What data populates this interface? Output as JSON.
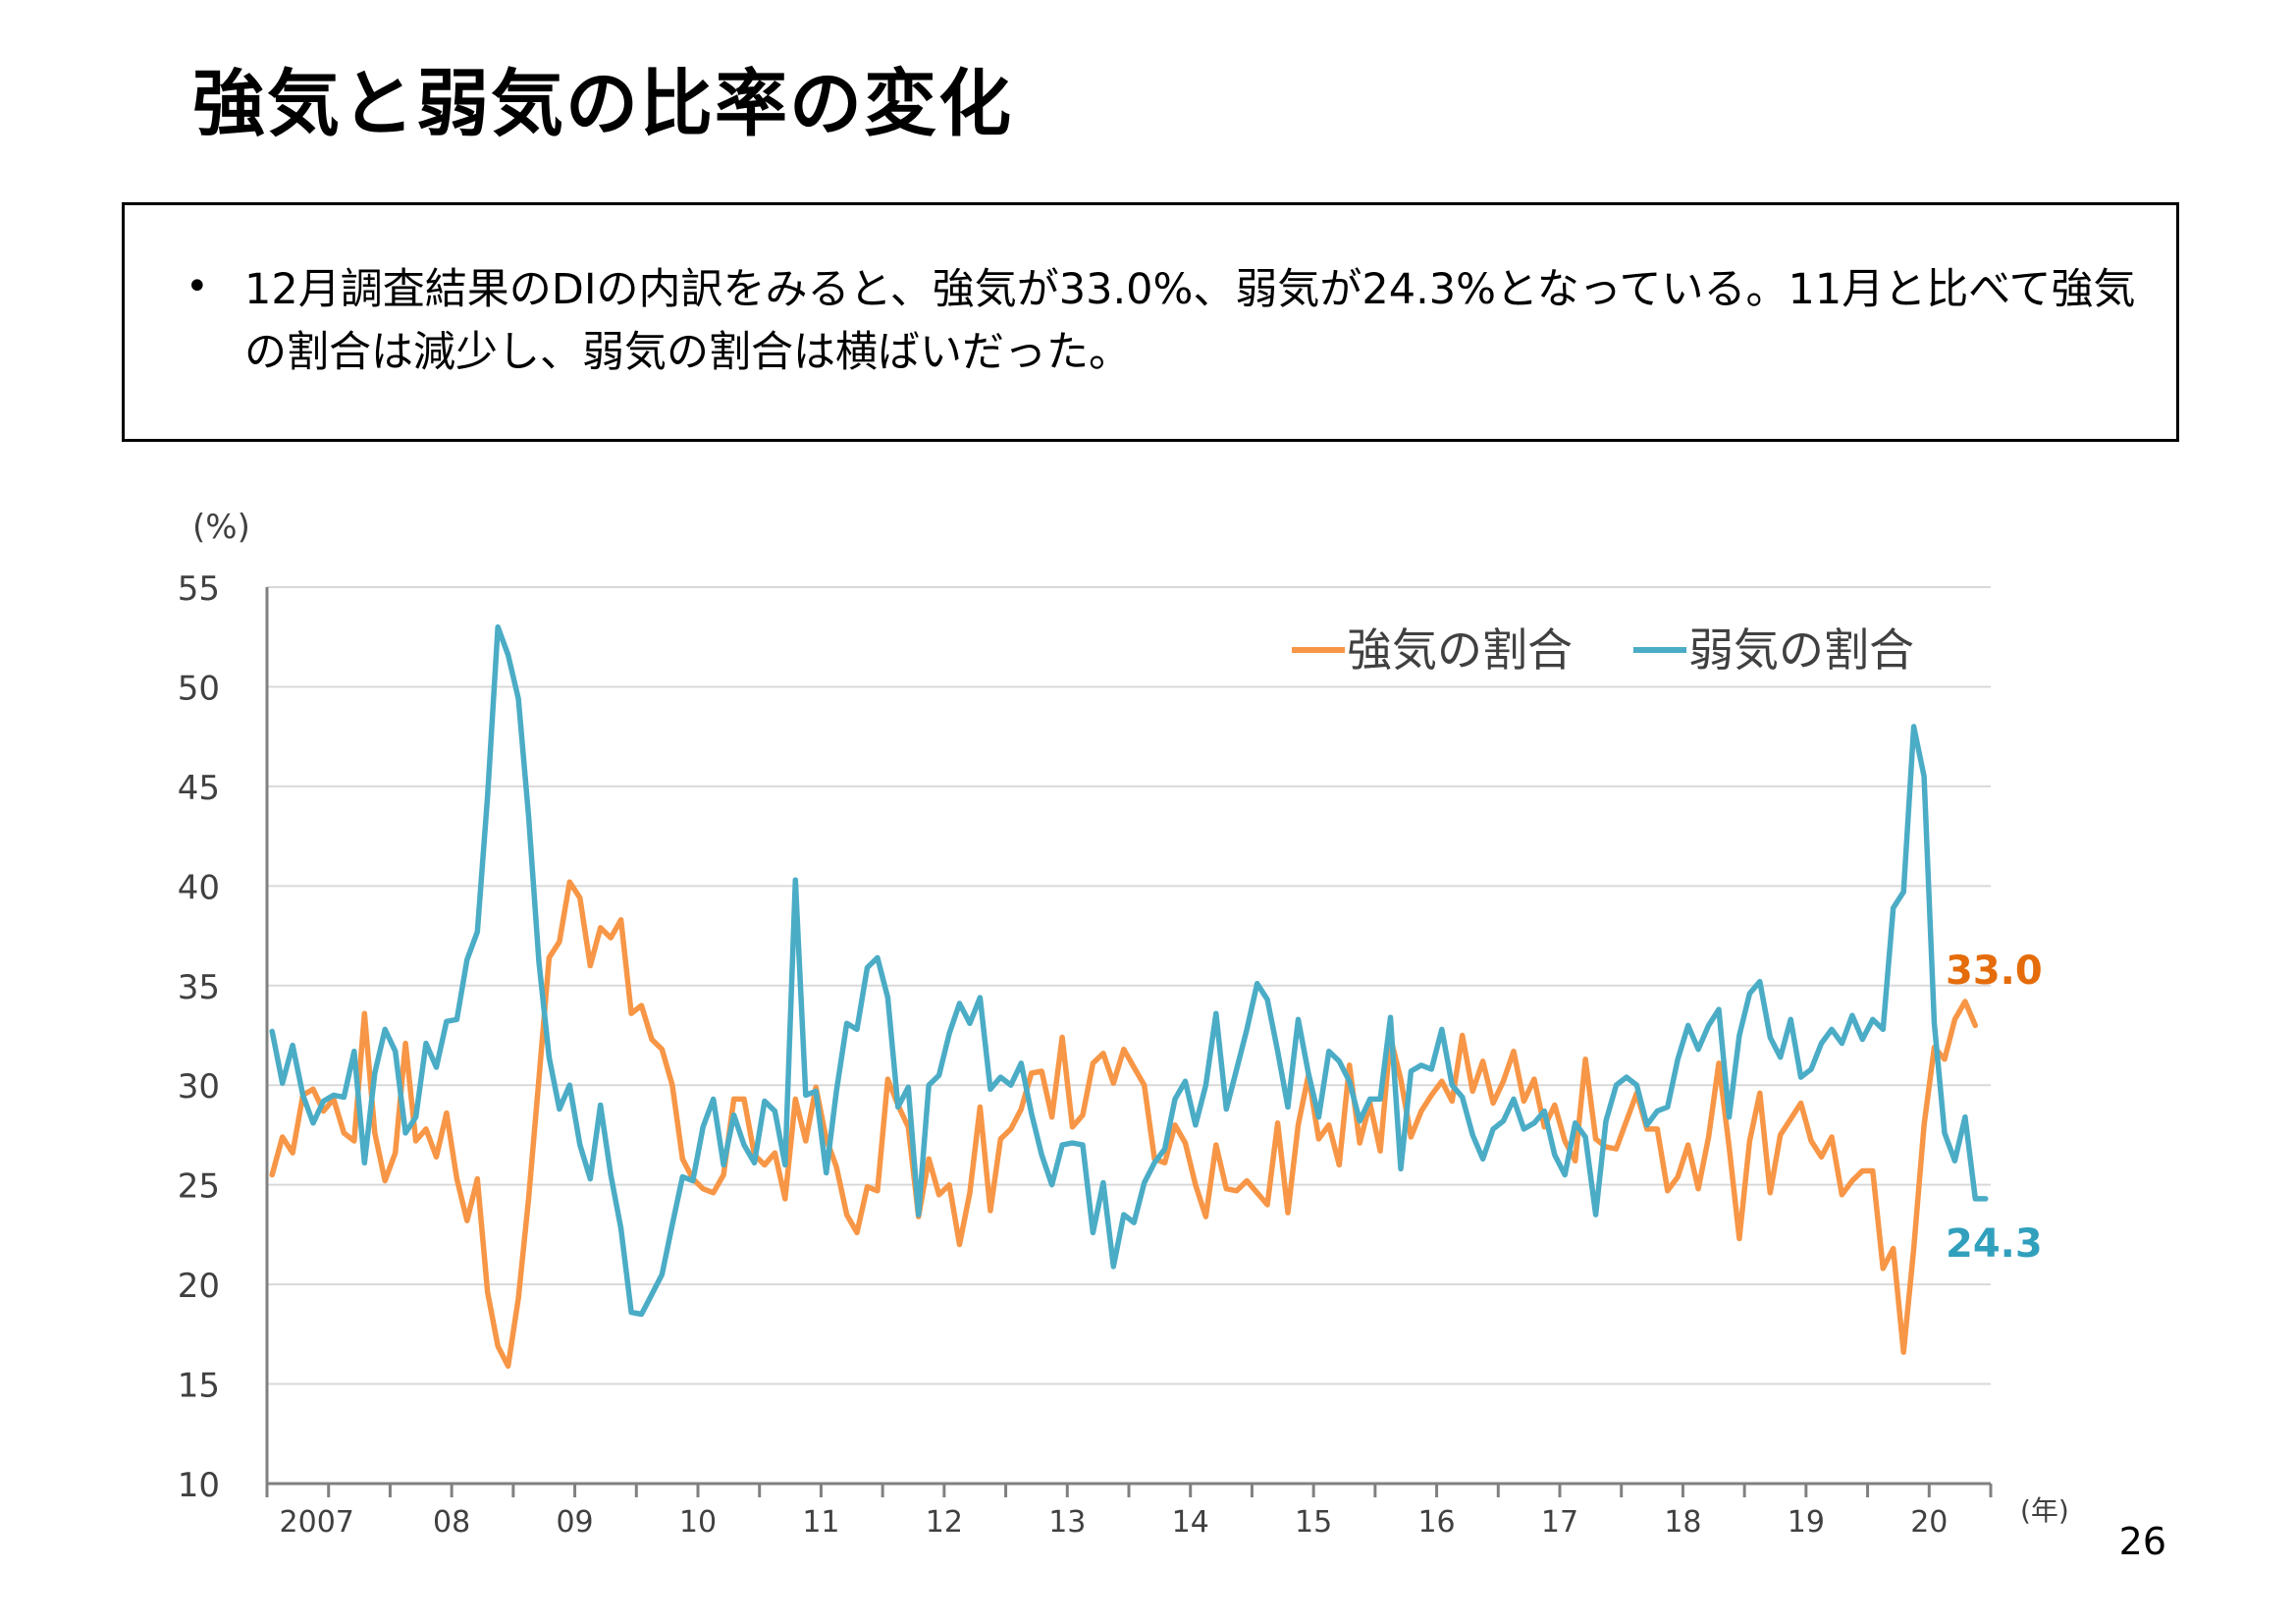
{
  "title": "強気と弱気の比率の変化",
  "summary": {
    "bullet": "•",
    "text": "12月調査結果のDIの内訳をみると、強気が33.0%、弱気が24.3%となっている。11月と比べて強気の割合は減少し、弱気の割合は横ばいだった。"
  },
  "page_number": "26",
  "chart_data": {
    "type": "line",
    "ylabel": "(%)",
    "xlabel": "(年)",
    "ylim": [
      10,
      55
    ],
    "yticks": [
      10,
      15,
      20,
      25,
      30,
      35,
      40,
      45,
      50,
      55
    ],
    "xlim_months": [
      0,
      168
    ],
    "x_start": "2007-01",
    "x_tick_labels": [
      "2007",
      "08",
      "09",
      "10",
      "11",
      "12",
      "13",
      "14",
      "15",
      "16",
      "17",
      "18",
      "19",
      "20"
    ],
    "grid": "horizontal",
    "legend_position": "top-right",
    "series": [
      {
        "name": "強気の割合",
        "color": "#F79646",
        "end_label": "33.0",
        "end_label_color": "#E46C0A",
        "values": [
          25.5,
          27.4,
          26.6,
          29.5,
          29.8,
          28.7,
          29.3,
          27.6,
          27.2,
          33.6,
          27.6,
          25.2,
          26.6,
          32.1,
          27.2,
          27.8,
          26.4,
          28.6,
          25.3,
          23.2,
          25.3,
          19.6,
          16.9,
          15.9,
          19.3,
          24.3,
          30.3,
          36.4,
          37.2,
          40.2,
          39.4,
          36.0,
          37.9,
          37.4,
          38.3,
          33.6,
          34.0,
          32.3,
          31.8,
          30.0,
          26.3,
          25.3,
          24.8,
          24.6,
          25.5,
          29.3,
          29.3,
          26.5,
          26.0,
          26.6,
          24.3,
          29.3,
          27.2,
          29.9,
          27.3,
          25.9,
          23.5,
          22.6,
          24.9,
          24.7,
          30.3,
          29.0,
          27.9,
          23.4,
          26.3,
          24.5,
          25.0,
          22.0,
          24.6,
          28.9,
          23.7,
          27.3,
          27.8,
          28.8,
          30.6,
          30.7,
          28.4,
          32.4,
          27.9,
          28.5,
          31.1,
          31.6,
          30.1,
          31.8,
          30.9,
          30.0,
          26.3,
          26.1,
          28.0,
          27.1,
          25.0,
          23.4,
          27.0,
          24.8,
          24.7,
          25.2,
          24.6,
          24.0,
          28.1,
          23.6,
          28.0,
          30.5,
          27.3,
          28.0,
          26.0,
          31.0,
          27.1,
          29.1,
          26.7,
          32.4,
          30.3,
          27.4,
          28.7,
          29.5,
          30.2,
          29.2,
          32.5,
          29.7,
          31.2,
          29.1,
          30.2,
          31.7,
          29.2,
          30.3,
          27.9,
          29.0,
          27.2,
          26.2,
          31.3,
          27.3,
          26.9,
          26.8,
          28.2,
          29.6,
          27.8,
          27.8,
          24.7,
          25.4,
          27.0,
          24.8,
          27.4,
          31.1,
          26.9,
          22.3,
          27.2,
          29.6,
          24.6,
          27.5,
          28.3,
          29.1,
          27.2,
          26.4,
          27.4,
          24.5,
          25.2,
          25.7,
          25.7,
          20.8,
          21.8,
          16.6,
          21.8,
          28.0,
          31.9,
          31.3,
          33.3,
          34.2,
          33.0
        ]
      },
      {
        "name": "弱気の割合",
        "color": "#4BACC6",
        "end_label": "24.3",
        "end_label_color": "#31A0BD",
        "values": [
          32.7,
          30.1,
          32.0,
          29.5,
          28.1,
          29.2,
          29.5,
          29.4,
          31.7,
          26.1,
          30.6,
          32.8,
          31.7,
          27.6,
          28.4,
          32.1,
          30.9,
          33.2,
          33.3,
          36.3,
          37.7,
          44.5,
          53.0,
          51.6,
          49.4,
          43.5,
          36.2,
          31.4,
          28.8,
          30.0,
          27.0,
          25.3,
          29.0,
          25.5,
          22.8,
          18.6,
          18.5,
          19.5,
          20.5,
          23.0,
          25.4,
          25.2,
          27.9,
          29.3,
          26.0,
          28.5,
          27.0,
          26.1,
          29.2,
          28.7,
          26.0,
          40.3,
          29.5,
          29.7,
          25.6,
          29.7,
          33.1,
          32.8,
          35.9,
          36.4,
          34.4,
          28.9,
          29.9,
          23.5,
          30.0,
          30.5,
          32.6,
          34.1,
          33.1,
          34.4,
          29.8,
          30.4,
          30.0,
          31.1,
          28.6,
          26.5,
          25.0,
          27.0,
          27.1,
          27.0,
          22.6,
          25.1,
          20.9,
          23.5,
          23.1,
          25.1,
          26.1,
          26.8,
          29.3,
          30.2,
          28.0,
          30.0,
          33.6,
          28.8,
          30.8,
          32.8,
          35.1,
          34.3,
          31.7,
          28.9,
          33.3,
          30.6,
          28.4,
          31.7,
          31.2,
          30.2,
          28.2,
          29.3,
          29.3,
          33.4,
          25.8,
          30.7,
          31.0,
          30.8,
          32.8,
          30.0,
          29.4,
          27.5,
          26.3,
          27.8,
          28.2,
          29.3,
          27.8,
          28.1,
          28.7,
          26.5,
          25.5,
          28.1,
          27.4,
          23.5,
          28.2,
          30.0,
          30.4,
          30.0,
          28.0,
          28.7,
          28.9,
          31.3,
          33.0,
          31.8,
          33.0,
          33.8,
          28.4,
          32.5,
          34.6,
          35.2,
          32.4,
          31.4,
          33.3,
          30.4,
          30.8,
          32.1,
          32.8,
          32.1,
          33.5,
          32.3,
          33.3,
          32.8,
          38.9,
          39.7,
          48.0,
          45.5,
          33.1,
          27.6,
          26.2,
          28.4,
          24.3,
          24.3
        ]
      }
    ]
  }
}
